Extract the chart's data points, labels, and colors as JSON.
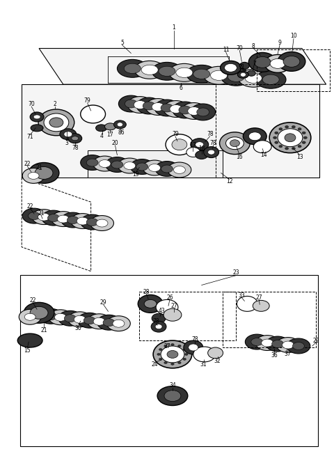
{
  "bg_color": "#ffffff",
  "fig_width": 4.8,
  "fig_height": 6.55,
  "dpi": 100
}
